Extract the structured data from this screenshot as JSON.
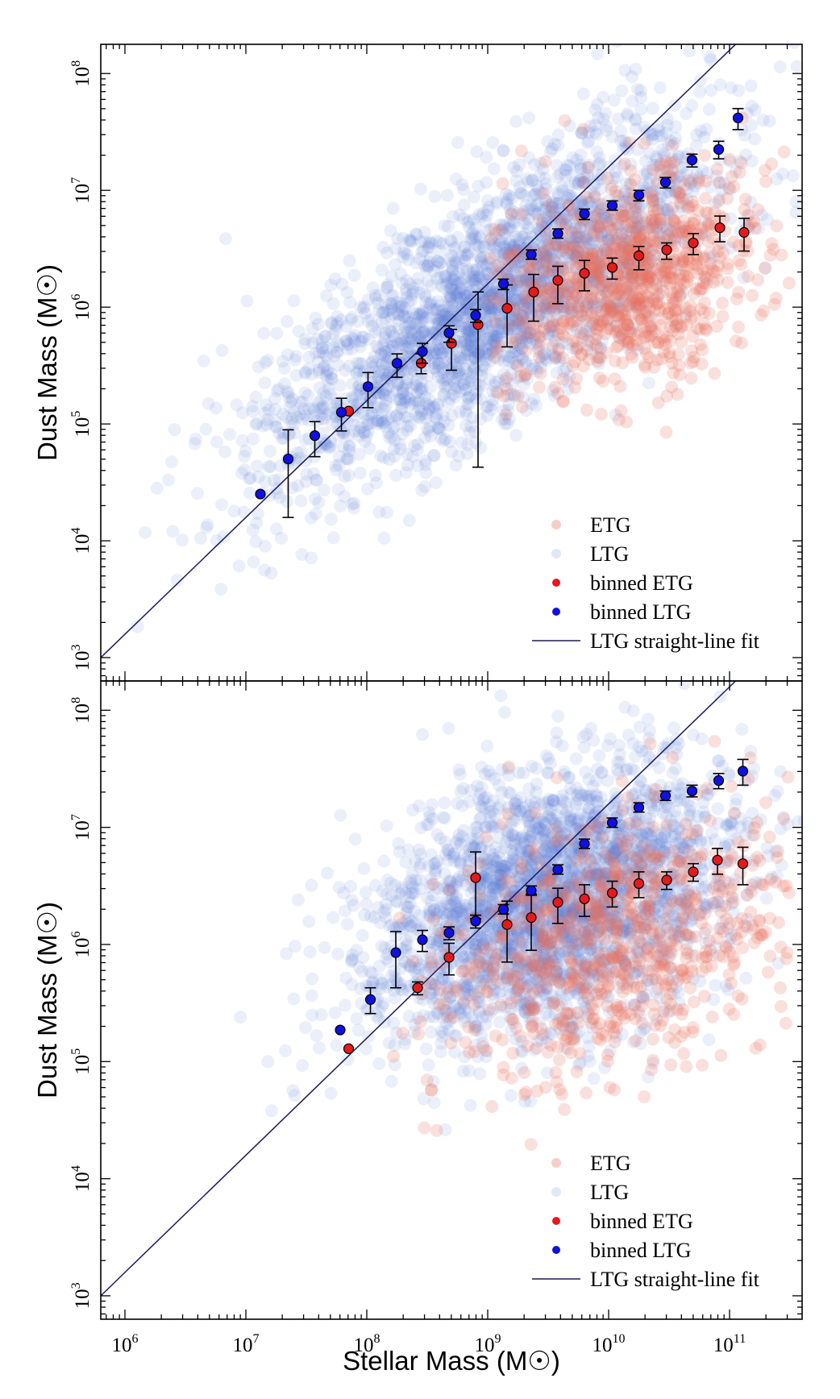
{
  "chart_data": [
    {
      "type": "scatter",
      "panel": "top",
      "title": "",
      "xlabel": "Stellar Mass  (M☉)",
      "ylabel": "Dust Mass  (M☉)",
      "xscale": "log",
      "yscale": "log",
      "xlim_log10": [
        5.8,
        11.6
      ],
      "ylim_log10": [
        2.8,
        8.25
      ],
      "x_ticks": [
        6,
        7,
        8,
        9,
        10,
        11
      ],
      "y_ticks": [
        3,
        4,
        5,
        6,
        7,
        8
      ],
      "legend_position": "bottom-right",
      "legend": [
        "ETG",
        "LTG",
        "binned ETG",
        "binned LTG",
        "LTG straight-line fit"
      ],
      "fit_line": {
        "slope": 1.0,
        "intercept": -2.8
      },
      "scatter_clouds": {
        "ETG": {
          "color": "#e8735e",
          "n": 900,
          "x_center": 10.2,
          "x_sd": 0.5,
          "y_center": 6.25,
          "y_sd": 0.45,
          "x_min": 9.0,
          "x_max": 11.5
        },
        "LTG": {
          "color": "#5a7ad8",
          "n": 2600,
          "x_center": 9.0,
          "x_sd": 0.95,
          "slope": 0.62,
          "y_at_9": 6.0,
          "y_sd": 0.5
        }
      },
      "series": [
        {
          "name": "binned ETG",
          "color": "#e41a1c",
          "log_mstar": [
            7.85,
            8.45,
            8.7,
            8.92,
            9.16,
            9.38,
            9.58,
            9.8,
            10.03,
            10.25,
            10.48,
            10.7,
            10.92,
            11.12
          ],
          "log_mdust": [
            5.11,
            5.52,
            5.69,
            5.85,
            5.99,
            6.13,
            6.23,
            6.29,
            6.34,
            6.44,
            6.49,
            6.55,
            6.68,
            6.64
          ],
          "err_lo": [
            0.0,
            0.09,
            0.23,
            1.22,
            0.33,
            0.25,
            0.2,
            0.15,
            0.1,
            0.12,
            0.08,
            0.1,
            0.12,
            0.16
          ],
          "err_hi": [
            0.0,
            0.08,
            0.12,
            0.28,
            0.2,
            0.15,
            0.12,
            0.11,
            0.08,
            0.08,
            0.06,
            0.08,
            0.1,
            0.12
          ]
        },
        {
          "name": "binned LTG",
          "color": "#1010e0",
          "log_mstar": [
            7.12,
            7.35,
            7.57,
            7.79,
            8.01,
            8.25,
            8.46,
            8.68,
            8.9,
            9.13,
            9.36,
            9.58,
            9.8,
            10.03,
            10.25,
            10.47,
            10.69,
            10.91,
            11.07
          ],
          "log_mdust": [
            4.4,
            4.7,
            4.9,
            5.1,
            5.32,
            5.52,
            5.62,
            5.78,
            5.93,
            6.2,
            6.45,
            6.63,
            6.8,
            6.87,
            6.96,
            7.07,
            7.26,
            7.35,
            7.62
          ],
          "err_lo": [
            0.0,
            0.5,
            0.18,
            0.16,
            0.18,
            0.12,
            0.1,
            0.08,
            0.06,
            0.05,
            0.04,
            0.04,
            0.05,
            0.04,
            0.05,
            0.05,
            0.06,
            0.08,
            0.1
          ],
          "err_hi": [
            0.0,
            0.25,
            0.12,
            0.12,
            0.12,
            0.08,
            0.07,
            0.06,
            0.05,
            0.04,
            0.04,
            0.04,
            0.04,
            0.04,
            0.04,
            0.04,
            0.05,
            0.07,
            0.08
          ]
        }
      ]
    },
    {
      "type": "scatter",
      "panel": "bottom",
      "title": "",
      "xlabel": "Stellar Mass  (M☉)",
      "ylabel": "Dust Mass  (M☉)",
      "xscale": "log",
      "yscale": "log",
      "xlim_log10": [
        5.8,
        11.6
      ],
      "ylim_log10": [
        2.8,
        8.25
      ],
      "x_ticks": [
        6,
        7,
        8,
        9,
        10,
        11
      ],
      "y_ticks": [
        3,
        4,
        5,
        6,
        7,
        8
      ],
      "legend_position": "bottom-right",
      "legend": [
        "ETG",
        "LTG",
        "binned ETG",
        "binned LTG",
        "LTG straight-line fit"
      ],
      "fit_line": {
        "slope": 1.0,
        "intercept": -2.8
      },
      "scatter_clouds": {
        "ETG": {
          "color": "#e8735e",
          "n": 800,
          "x_center": 10.0,
          "x_sd": 0.7,
          "y_center": 6.0,
          "y_sd": 0.55,
          "x_min": 8.2,
          "x_max": 11.5
        },
        "LTG": {
          "color": "#5a7ad8",
          "n": 2800,
          "x_center": 9.5,
          "x_sd": 0.75,
          "slope": 0.3,
          "y_at_9": 6.2,
          "y_sd": 0.55
        }
      },
      "series": [
        {
          "name": "binned ETG",
          "color": "#e41a1c",
          "log_mstar": [
            7.85,
            8.42,
            8.68,
            8.9,
            9.16,
            9.36,
            9.58,
            9.8,
            10.03,
            10.25,
            10.48,
            10.7,
            10.9,
            11.11
          ],
          "log_mdust": [
            5.11,
            5.63,
            5.89,
            6.57,
            6.17,
            6.23,
            6.36,
            6.39,
            6.44,
            6.52,
            6.55,
            6.62,
            6.72,
            6.69
          ],
          "err_lo": [
            0.0,
            0.06,
            0.15,
            0.35,
            0.32,
            0.28,
            0.18,
            0.15,
            0.12,
            0.12,
            0.08,
            0.08,
            0.12,
            0.18
          ],
          "err_hi": [
            0.0,
            0.05,
            0.12,
            0.22,
            0.2,
            0.2,
            0.12,
            0.12,
            0.1,
            0.1,
            0.07,
            0.07,
            0.1,
            0.14
          ]
        },
        {
          "name": "binned LTG",
          "color": "#1010e0",
          "log_mstar": [
            7.78,
            8.03,
            8.24,
            8.46,
            8.68,
            8.9,
            9.13,
            9.36,
            9.58,
            9.8,
            10.03,
            10.25,
            10.47,
            10.69,
            10.91,
            11.11
          ],
          "log_mdust": [
            5.27,
            5.53,
            5.93,
            6.04,
            6.1,
            6.2,
            6.3,
            6.46,
            6.64,
            6.86,
            7.04,
            7.17,
            7.27,
            7.31,
            7.4,
            7.48
          ],
          "err_lo": [
            0.0,
            0.12,
            0.3,
            0.1,
            0.06,
            0.06,
            0.04,
            0.04,
            0.04,
            0.04,
            0.04,
            0.04,
            0.04,
            0.05,
            0.07,
            0.12
          ],
          "err_hi": [
            0.0,
            0.1,
            0.18,
            0.08,
            0.05,
            0.05,
            0.04,
            0.04,
            0.04,
            0.04,
            0.04,
            0.04,
            0.04,
            0.05,
            0.06,
            0.1
          ]
        }
      ]
    }
  ]
}
